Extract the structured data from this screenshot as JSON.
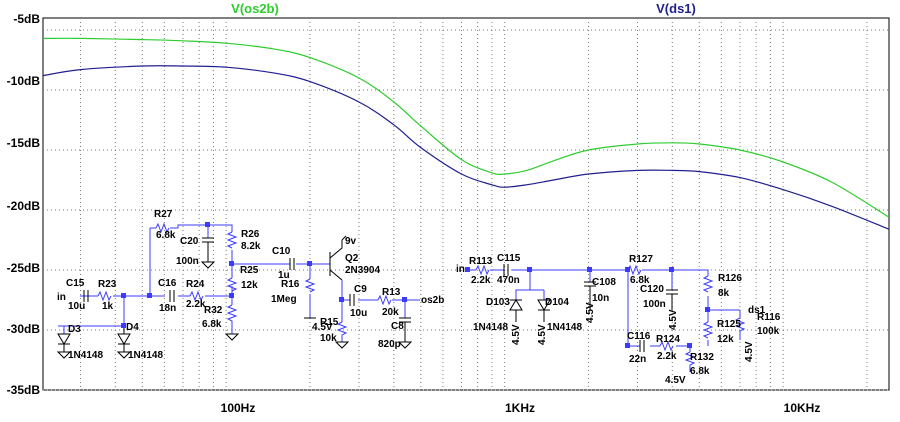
{
  "legend": {
    "trace1": {
      "label": "V(os2b)",
      "color": "#2ecc2e"
    },
    "trace2": {
      "label": "V(ds1)",
      "color": "#1f1f8f"
    }
  },
  "axes": {
    "y_ticks": [
      "-5dB",
      "-10dB",
      "-15dB",
      "-20dB",
      "-25dB",
      "-30dB",
      "-35dB"
    ],
    "x_ticks": [
      "100Hz",
      "1KHz",
      "10KHz"
    ],
    "y_range_db": [
      -35,
      -4
    ],
    "x_range_hz": [
      22,
      24000
    ],
    "x_scale": "log",
    "grid": true
  },
  "chart_data": {
    "type": "line",
    "x_scale": "log",
    "ylim": [
      -35,
      -4
    ],
    "xlim": [
      22,
      24000
    ],
    "series": [
      {
        "name": "V(os2b)",
        "color": "#2ecc2e",
        "x": [
          22,
          30,
          50,
          70,
          100,
          150,
          200,
          300,
          400,
          500,
          700,
          900,
          1000,
          1200,
          1500,
          2000,
          3000,
          4000,
          5000,
          7000,
          10000,
          15000,
          24000
        ],
        "y": [
          -5.7,
          -5.7,
          -5.8,
          -5.9,
          -6.1,
          -6.6,
          -7.3,
          -9.0,
          -11.0,
          -13.0,
          -15.8,
          -16.9,
          -17.0,
          -16.7,
          -15.9,
          -15.0,
          -14.5,
          -14.4,
          -14.5,
          -15.0,
          -16.0,
          -17.7,
          -20.6
        ]
      },
      {
        "name": "V(ds1)",
        "color": "#1f1f8f",
        "x": [
          22,
          30,
          50,
          70,
          100,
          150,
          200,
          300,
          400,
          500,
          700,
          900,
          1000,
          1200,
          1500,
          2000,
          3000,
          4000,
          5000,
          7000,
          10000,
          15000,
          24000
        ],
        "y": [
          -8.8,
          -8.3,
          -8.0,
          -8.0,
          -8.1,
          -8.6,
          -9.3,
          -11.0,
          -12.9,
          -14.8,
          -17.0,
          -17.9,
          -18.1,
          -17.9,
          -17.5,
          -17.0,
          -16.7,
          -16.7,
          -16.8,
          -17.3,
          -18.3,
          -19.7,
          -21.6
        ]
      }
    ]
  },
  "schematic": {
    "left_circuit": {
      "components": [
        "R27",
        "6.8k",
        "C20",
        "100n",
        "R26",
        "8.2k",
        "C10",
        "1u",
        "R25",
        "12k",
        "Q2",
        "2N3904",
        "C15",
        "10u",
        "R23",
        "1k",
        "C16",
        "18n",
        "R24",
        "2.2k",
        "R32",
        "6.8k",
        "R16",
        "1Meg",
        "C9",
        "10u",
        "R13",
        "20k",
        "C8",
        "820p",
        "R15",
        "10k",
        "D3",
        "1N4148",
        "D4",
        "1N4148"
      ],
      "nodes": [
        "in",
        "os2b",
        "4.5V",
        "9v"
      ]
    },
    "right_circuit": {
      "components": [
        "R113",
        "2.2k",
        "C115",
        "470n",
        "D103",
        "1N4148",
        "D104",
        "1N4148",
        "C108",
        "10n",
        "R127",
        "6.8k",
        "C120",
        "100n",
        "R126",
        "8k",
        "R125",
        "12k",
        "R116",
        "100k",
        "C116",
        "22n",
        "R124",
        "2.2k",
        "R132",
        "6.8k"
      ],
      "nodes": [
        "in",
        "ds1",
        "4.5V",
        "4.5V",
        "4.5V",
        "4.5V",
        "4.5V"
      ]
    }
  }
}
